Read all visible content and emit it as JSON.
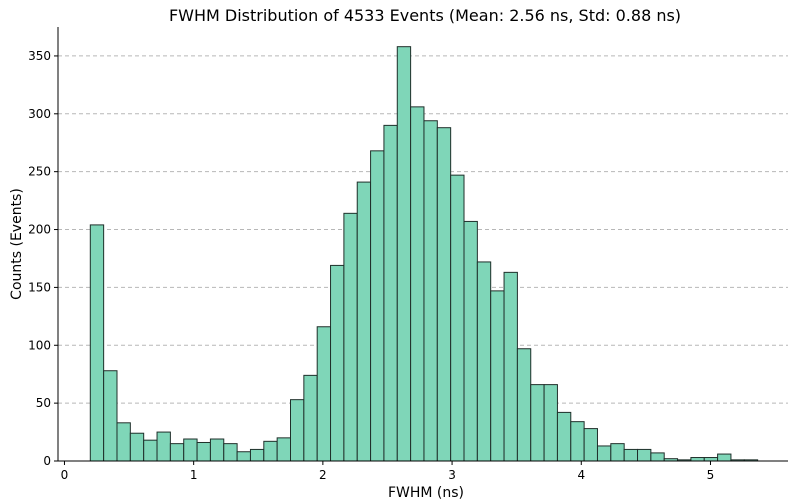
{
  "chart_data": {
    "type": "bar",
    "title": "FWHM Distribution of 4533 Events (Mean: 2.56 ns, Std: 0.88 ns)",
    "xlabel": "FWHM (ns)",
    "ylabel": "Counts (Events)",
    "xlim": [
      -0.05,
      5.6
    ],
    "ylim": [
      0,
      375
    ],
    "xticks": [
      0,
      1,
      2,
      3,
      4,
      5
    ],
    "yticks": [
      0,
      50,
      100,
      150,
      200,
      250,
      300,
      350
    ],
    "grid": "horizontal-dashed",
    "bar_color": "#7fd6b8",
    "edge_color": "#1f2f2a",
    "bins_start": 0.2,
    "bin_width": 0.1033,
    "values": [
      204,
      78,
      33,
      24,
      18,
      25,
      15,
      19,
      16,
      19,
      15,
      8,
      10,
      17,
      20,
      53,
      74,
      116,
      169,
      214,
      241,
      268,
      290,
      358,
      306,
      294,
      288,
      247,
      207,
      172,
      147,
      163,
      97,
      66,
      66,
      42,
      34,
      28,
      13,
      15,
      10,
      10,
      7,
      2,
      1,
      3,
      3,
      6,
      1,
      1
    ]
  }
}
